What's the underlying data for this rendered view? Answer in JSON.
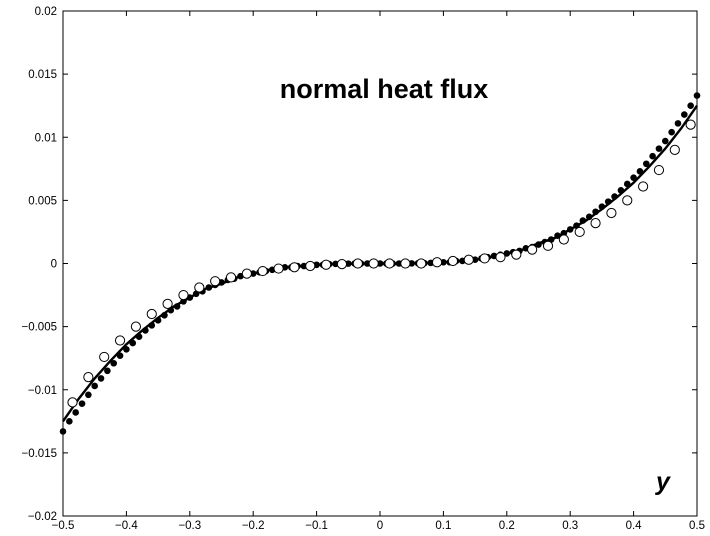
{
  "chart_data": {
    "type": "scatter",
    "title": "normal heat flux",
    "xlabel": "y",
    "ylabel": "",
    "xlim": [
      -0.5,
      0.5
    ],
    "ylim": [
      -0.02,
      0.02
    ],
    "grid": false,
    "legend": "none",
    "x_ticks": [
      -0.5,
      -0.4,
      -0.3,
      -0.2,
      -0.1,
      0,
      0.1,
      0.2,
      0.3,
      0.4,
      0.5
    ],
    "x_tick_labels": [
      "−0.5",
      "−0.4",
      "−0.3",
      "−0.2",
      "−0.1",
      "0",
      "0.1",
      "0.2",
      "0.3",
      "0.4",
      "0.5"
    ],
    "y_ticks": [
      -0.02,
      -0.015,
      -0.01,
      -0.005,
      0,
      0.005,
      0.01,
      0.015,
      0.02
    ],
    "y_tick_labels": [
      "−0.02",
      "−0.015",
      "−0.01",
      "−0.005",
      "0",
      "0.005",
      "0.01",
      "0.015",
      "0.02"
    ],
    "series": [
      {
        "style": "solid-line",
        "color": "#000000",
        "x": [
          -0.5,
          -0.475,
          -0.45,
          -0.425,
          -0.4,
          -0.375,
          -0.35,
          -0.325,
          -0.3,
          -0.275,
          -0.25,
          -0.225,
          -0.2,
          -0.175,
          -0.15,
          -0.125,
          -0.1,
          -0.075,
          -0.05,
          -0.025,
          0,
          0.025,
          0.05,
          0.075,
          0.1,
          0.125,
          0.15,
          0.175,
          0.2,
          0.225,
          0.25,
          0.275,
          0.3,
          0.325,
          0.35,
          0.375,
          0.4,
          0.425,
          0.45,
          0.475,
          0.5
        ],
        "y": [
          -0.0125,
          -0.0107,
          -0.0091,
          -0.0077,
          -0.0064,
          -0.0053,
          -0.0043,
          -0.0034,
          -0.0027,
          -0.002,
          -0.0016,
          -0.0011,
          -0.0008,
          -0.0005,
          -0.0003,
          -0.0002,
          -0.0001,
          -5e-05,
          -2e-05,
          0,
          0,
          0,
          2e-05,
          5e-05,
          0.0001,
          0.0002,
          0.0003,
          0.0005,
          0.0008,
          0.0011,
          0.0016,
          0.002,
          0.0027,
          0.0034,
          0.0043,
          0.0053,
          0.0064,
          0.0077,
          0.0091,
          0.0107,
          0.0125
        ]
      },
      {
        "style": "filled-circles",
        "color": "#000000",
        "x": [
          -0.5,
          -0.49,
          -0.48,
          -0.47,
          -0.46,
          -0.45,
          -0.44,
          -0.43,
          -0.42,
          -0.41,
          -0.4,
          -0.39,
          -0.38,
          -0.37,
          -0.36,
          -0.35,
          -0.34,
          -0.33,
          -0.32,
          -0.31,
          -0.3,
          -0.29,
          -0.28,
          -0.27,
          -0.26,
          -0.25,
          -0.24,
          -0.23,
          -0.22,
          -0.21,
          -0.2,
          -0.19,
          -0.18,
          -0.17,
          -0.16,
          -0.15,
          -0.14,
          -0.13,
          -0.12,
          -0.11,
          -0.1,
          -0.09,
          -0.08,
          -0.07,
          -0.06,
          -0.05,
          -0.04,
          -0.03,
          -0.02,
          -0.01,
          0,
          0.01,
          0.02,
          0.03,
          0.04,
          0.05,
          0.06,
          0.07,
          0.08,
          0.09,
          0.1,
          0.11,
          0.12,
          0.13,
          0.14,
          0.15,
          0.16,
          0.17,
          0.18,
          0.19,
          0.2,
          0.21,
          0.22,
          0.23,
          0.24,
          0.25,
          0.26,
          0.27,
          0.28,
          0.29,
          0.3,
          0.31,
          0.32,
          0.33,
          0.34,
          0.35,
          0.36,
          0.37,
          0.38,
          0.39,
          0.4,
          0.41,
          0.42,
          0.43,
          0.44,
          0.45,
          0.46,
          0.47,
          0.48,
          0.49,
          0.5
        ],
        "y": [
          -0.0133,
          -0.0125,
          -0.0118,
          -0.0111,
          -0.0104,
          -0.0097,
          -0.0091,
          -0.0085,
          -0.0079,
          -0.0073,
          -0.0068,
          -0.0063,
          -0.0058,
          -0.0053,
          -0.0049,
          -0.0045,
          -0.0041,
          -0.0037,
          -0.0034,
          -0.003,
          -0.0027,
          -0.0024,
          -0.0022,
          -0.0019,
          -0.0017,
          -0.0015,
          -0.0013,
          -0.0012,
          -0.001,
          -0.0009,
          -0.0008,
          -0.0007,
          -0.0006,
          -0.0005,
          -0.0004,
          -0.0003,
          -0.0003,
          -0.0002,
          -0.0002,
          -0.0001,
          -0.0001,
          -0.0001,
          -5e-05,
          -3e-05,
          -2e-05,
          -1e-05,
          0,
          0,
          0,
          0,
          0,
          0,
          0,
          0,
          0,
          1e-05,
          2e-05,
          3e-05,
          5e-05,
          0.0001,
          0.0001,
          0.0001,
          0.0002,
          0.0002,
          0.0003,
          0.0003,
          0.0004,
          0.0005,
          0.0006,
          0.0007,
          0.0008,
          0.0009,
          0.001,
          0.0012,
          0.0013,
          0.0015,
          0.0017,
          0.0019,
          0.0022,
          0.0024,
          0.0027,
          0.003,
          0.0034,
          0.0037,
          0.0041,
          0.0045,
          0.0049,
          0.0053,
          0.0058,
          0.0063,
          0.0068,
          0.0073,
          0.0079,
          0.0085,
          0.0091,
          0.0097,
          0.0104,
          0.0111,
          0.0118,
          0.0125,
          0.0133
        ]
      },
      {
        "style": "open-circles",
        "color": "#000000",
        "x": [
          -0.485,
          -0.46,
          -0.435,
          -0.41,
          -0.385,
          -0.36,
          -0.335,
          -0.31,
          -0.285,
          -0.26,
          -0.235,
          -0.21,
          -0.185,
          -0.16,
          -0.135,
          -0.11,
          -0.085,
          -0.06,
          -0.035,
          -0.01,
          0.015,
          0.04,
          0.065,
          0.09,
          0.115,
          0.14,
          0.165,
          0.19,
          0.215,
          0.24,
          0.265,
          0.29,
          0.315,
          0.34,
          0.365,
          0.39,
          0.415,
          0.44,
          0.465,
          0.49
        ],
        "y": [
          -0.011,
          -0.009,
          -0.0074,
          -0.0061,
          -0.005,
          -0.004,
          -0.0032,
          -0.0025,
          -0.0019,
          -0.0014,
          -0.0011,
          -0.0008,
          -0.0006,
          -0.0004,
          -0.0003,
          -0.0002,
          -0.0001,
          -5e-05,
          0,
          0,
          0,
          0,
          0,
          0.0001,
          0.0002,
          0.0003,
          0.0004,
          0.0005,
          0.0007,
          0.0011,
          0.0014,
          0.0019,
          0.0025,
          0.0032,
          0.004,
          0.005,
          0.0061,
          0.0074,
          0.009,
          0.011
        ]
      }
    ]
  }
}
